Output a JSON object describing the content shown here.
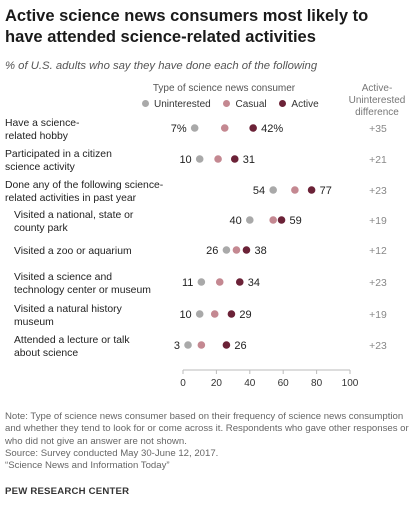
{
  "title": "Active science news consumers most likely to have attended science-related activities",
  "subtitle": "% of U.S. adults who say they have done each of the following",
  "legend": {
    "title": "Type of science news consumer",
    "items": [
      {
        "label": "Uninterested",
        "color": "#a9a9a9"
      },
      {
        "label": "Casual",
        "color": "#c48891"
      },
      {
        "label": "Active",
        "color": "#6b2237"
      }
    ]
  },
  "diff_header": {
    "line1": "Active-",
    "line2": "Uninterested",
    "line3": "difference"
  },
  "chart_data": {
    "type": "scatter",
    "x_axis": {
      "range": [
        0,
        100
      ],
      "ticks": [
        0,
        20,
        40,
        60,
        80,
        100
      ]
    },
    "series": [
      {
        "name": "Uninterested",
        "color": "#a9a9a9"
      },
      {
        "name": "Casual",
        "color": "#c48891"
      },
      {
        "name": "Active",
        "color": "#6b2237"
      }
    ],
    "rows": [
      {
        "label": [
          "Have a science-",
          "related hobby"
        ],
        "indent": false,
        "uninterested": 7,
        "casual": 25,
        "active": 42,
        "uninterested_label": "7%",
        "active_label": "42%",
        "difference": "+35"
      },
      {
        "label": [
          "Participated in a citizen",
          "science activity"
        ],
        "indent": false,
        "uninterested": 10,
        "casual": 21,
        "active": 31,
        "uninterested_label": "10",
        "active_label": "31",
        "difference": "+21"
      },
      {
        "label": [
          "Done any of the following science-",
          "related activities in past year"
        ],
        "indent": false,
        "uninterested": 54,
        "casual": 67,
        "active": 77,
        "uninterested_label": "54",
        "active_label": "77",
        "difference": "+23"
      },
      {
        "label": [
          "Visited a national, state or",
          "county park"
        ],
        "indent": true,
        "uninterested": 40,
        "casual": 54,
        "active": 59,
        "uninterested_label": "40",
        "active_label": "59",
        "difference": "+19"
      },
      {
        "label": [
          "Visited a zoo or aquarium"
        ],
        "indent": true,
        "uninterested": 26,
        "casual": 32,
        "active": 38,
        "uninterested_label": "26",
        "active_label": "38",
        "difference": "+12"
      },
      {
        "label": [
          "Visited a science and",
          "technology center or museum"
        ],
        "indent": true,
        "uninterested": 11,
        "casual": 22,
        "active": 34,
        "uninterested_label": "11",
        "active_label": "34",
        "difference": "+23"
      },
      {
        "label": [
          "Visited a natural history",
          "museum"
        ],
        "indent": true,
        "uninterested": 10,
        "casual": 19,
        "active": 29,
        "uninterested_label": "10",
        "active_label": "29",
        "difference": "+19"
      },
      {
        "label": [
          "Attended a lecture or talk",
          "about science"
        ],
        "indent": true,
        "uninterested": 3,
        "casual": 11,
        "active": 26,
        "uninterested_label": "3",
        "active_label": "26",
        "difference": "+23"
      }
    ]
  },
  "notes": {
    "note": "Note: Type of science news consumer based on their frequency of science news consumption and whether they tend to look for or come across it. Respondents who gave other responses or who did not give an answer are not shown.",
    "source": "Source: Survey conducted May 30-June 12, 2017.",
    "report": "“Science News and Information Today”",
    "brand": "PEW RESEARCH CENTER"
  }
}
